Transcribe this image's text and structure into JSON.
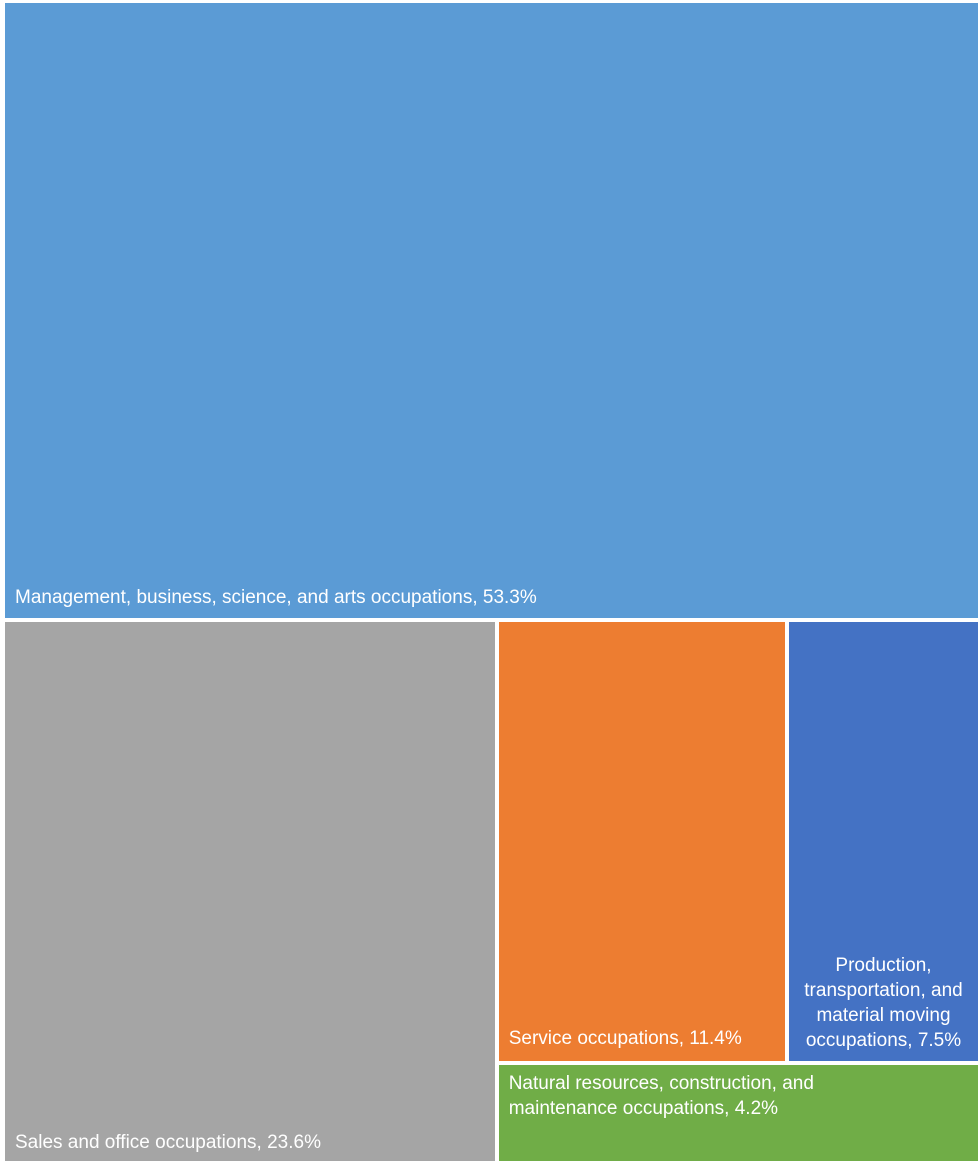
{
  "chart_data": {
    "type": "treemap",
    "title": "",
    "items": [
      {
        "name": "Management, business, science, and arts occupations",
        "value": 53.3,
        "label": "Management, business, science, and arts occupations, 53.3%",
        "color": "#5b9bd5"
      },
      {
        "name": "Sales and office occupations",
        "value": 23.6,
        "label": "Sales and office occupations, 23.6%",
        "color": "#a5a5a5"
      },
      {
        "name": "Service occupations",
        "value": 11.4,
        "label": "Service occupations, 11.4%",
        "color": "#ed7d31"
      },
      {
        "name": "Production, transportation, and material moving occupations",
        "value": 7.5,
        "label": "Production, transportation, and material moving occupations, 7.5%",
        "color": "#4472c4"
      },
      {
        "name": "Natural resources, construction, and maintenance occupations",
        "value": 4.2,
        "label": "Natural resources, construction, and maintenance occupations, 4.2%",
        "color": "#70ad47"
      }
    ]
  }
}
